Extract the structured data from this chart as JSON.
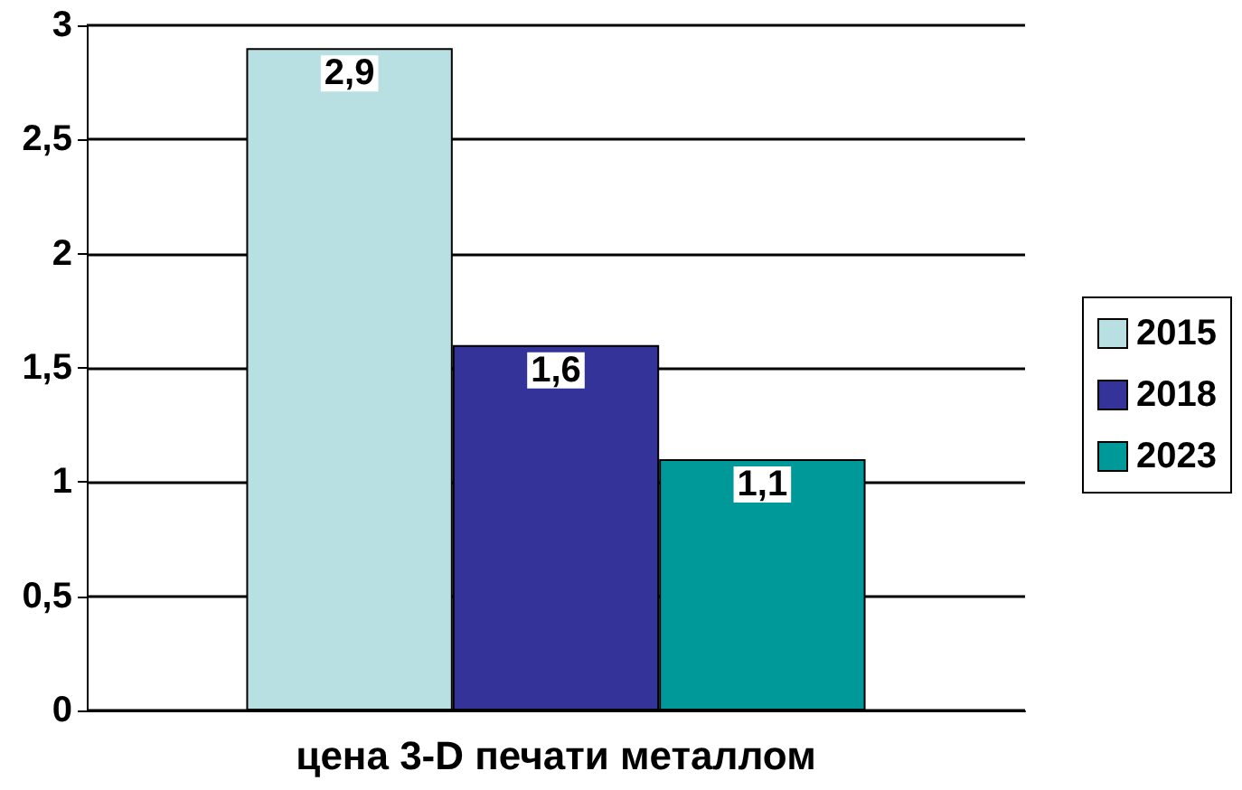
{
  "chart_data": {
    "type": "bar",
    "categories": [
      "цена 3-D печати металлом"
    ],
    "series": [
      {
        "name": "2015",
        "color": "#b8e0e3",
        "values": [
          2.9
        ],
        "value_labels": [
          "2,9"
        ]
      },
      {
        "name": "2018",
        "color": "#333399",
        "values": [
          1.6
        ],
        "value_labels": [
          "1,6"
        ]
      },
      {
        "name": "2023",
        "color": "#009999",
        "values": [
          1.1
        ],
        "value_labels": [
          "1,1"
        ]
      }
    ],
    "ylim": [
      0,
      3
    ],
    "yticks": [
      0,
      {
        "value": 0.5,
        "label": "0,5"
      },
      1,
      {
        "value": 1.5,
        "label": "1,5"
      },
      2,
      {
        "value": 2.5,
        "label": "2,5"
      },
      3
    ],
    "grid": "y",
    "legend": "right"
  }
}
